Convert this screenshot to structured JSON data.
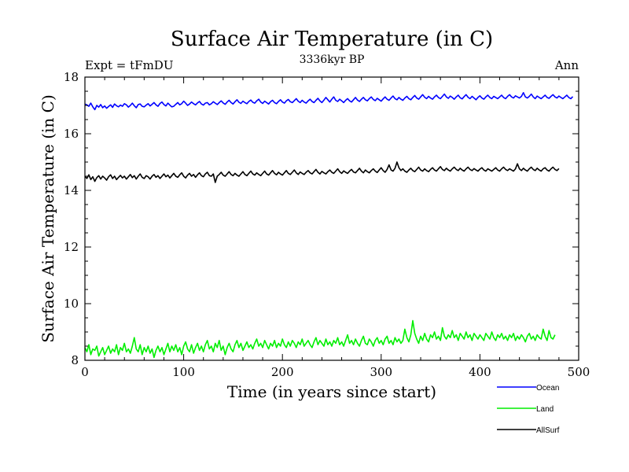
{
  "chart_data": {
    "type": "line",
    "title": "Surface Air Temperature (in C)",
    "subtitle": "3336kyr BP",
    "annotation_left": "Expt = tFmDU",
    "annotation_right": "Ann",
    "xlabel": "Time (in years since start)",
    "ylabel": "Surface Air Temperature (in C)",
    "xlim": [
      0,
      500
    ],
    "ylim": [
      8,
      18
    ],
    "xticks": [
      0,
      100,
      200,
      300,
      400,
      500
    ],
    "xtick_labels": [
      "0",
      "100",
      "200",
      "300",
      "400",
      "500"
    ],
    "yticks": [
      8,
      10,
      12,
      14,
      16,
      18
    ],
    "ytick_labels": [
      "8",
      "10",
      "12",
      "14",
      "16",
      "18"
    ],
    "grid": false,
    "legend_position": "bottom-right outside",
    "x_step": 2,
    "series": [
      {
        "name": "Ocean",
        "color": "#0000ff",
        "values": [
          17.05,
          17.02,
          16.97,
          17.08,
          16.95,
          16.85,
          17.0,
          16.94,
          17.03,
          16.92,
          16.98,
          16.9,
          16.96,
          17.02,
          16.93,
          17.05,
          16.99,
          16.95,
          17.01,
          16.97,
          17.06,
          17.02,
          16.94,
          17.0,
          17.08,
          16.99,
          16.92,
          17.03,
          17.05,
          16.97,
          16.95,
          17.01,
          17.06,
          16.98,
          17.04,
          17.1,
          17.02,
          16.97,
          17.07,
          17.12,
          17.03,
          16.98,
          17.08,
          17.01,
          16.95,
          16.97,
          17.04,
          17.1,
          17.02,
          17.06,
          17.15,
          17.08,
          17.0,
          17.05,
          17.12,
          17.06,
          17.02,
          17.09,
          17.14,
          17.05,
          17.01,
          17.08,
          17.1,
          17.02,
          17.06,
          17.13,
          17.08,
          17.03,
          17.1,
          17.16,
          17.09,
          17.04,
          17.12,
          17.18,
          17.1,
          17.05,
          17.13,
          17.2,
          17.11,
          17.07,
          17.15,
          17.1,
          17.06,
          17.14,
          17.19,
          17.11,
          17.08,
          17.16,
          17.22,
          17.12,
          17.07,
          17.15,
          17.1,
          17.05,
          17.13,
          17.18,
          17.1,
          17.06,
          17.14,
          17.2,
          17.12,
          17.08,
          17.16,
          17.21,
          17.13,
          17.1,
          17.17,
          17.24,
          17.15,
          17.1,
          17.18,
          17.12,
          17.08,
          17.16,
          17.22,
          17.14,
          17.1,
          17.18,
          17.25,
          17.16,
          17.1,
          17.19,
          17.28,
          17.2,
          17.12,
          17.22,
          17.3,
          17.18,
          17.14,
          17.22,
          17.16,
          17.1,
          17.18,
          17.24,
          17.16,
          17.12,
          17.2,
          17.28,
          17.19,
          17.14,
          17.22,
          17.28,
          17.2,
          17.16,
          17.24,
          17.3,
          17.21,
          17.17,
          17.25,
          17.2,
          17.15,
          17.23,
          17.3,
          17.22,
          17.18,
          17.26,
          17.33,
          17.24,
          17.2,
          17.28,
          17.22,
          17.18,
          17.26,
          17.32,
          17.24,
          17.2,
          17.28,
          17.35,
          17.26,
          17.22,
          17.3,
          17.38,
          17.29,
          17.24,
          17.32,
          17.26,
          17.22,
          17.3,
          17.36,
          17.28,
          17.24,
          17.32,
          17.4,
          17.3,
          17.25,
          17.33,
          17.28,
          17.22,
          17.3,
          17.36,
          17.27,
          17.23,
          17.31,
          17.38,
          17.29,
          17.24,
          17.32,
          17.26,
          17.2,
          17.28,
          17.34,
          17.26,
          17.22,
          17.3,
          17.36,
          17.28,
          17.24,
          17.32,
          17.28,
          17.24,
          17.3,
          17.36,
          17.28,
          17.24,
          17.32,
          17.38,
          17.3,
          17.26,
          17.34,
          17.3,
          17.26,
          17.32,
          17.45,
          17.3,
          17.26,
          17.32,
          17.4,
          17.3,
          17.24,
          17.33,
          17.28,
          17.24,
          17.3,
          17.36,
          17.28,
          17.25,
          17.32,
          17.38,
          17.3,
          17.26,
          17.33,
          17.28,
          17.24,
          17.3,
          17.36,
          17.28,
          17.24,
          17.31
        ]
      },
      {
        "name": "Land",
        "color": "#00ee00",
        "values": [
          8.45,
          8.3,
          8.55,
          8.2,
          8.4,
          8.35,
          8.5,
          8.15,
          8.3,
          8.45,
          8.2,
          8.35,
          8.5,
          8.25,
          8.4,
          8.3,
          8.55,
          8.2,
          8.45,
          8.35,
          8.6,
          8.3,
          8.4,
          8.25,
          8.5,
          8.8,
          8.4,
          8.3,
          8.55,
          8.2,
          8.45,
          8.3,
          8.5,
          8.25,
          8.4,
          8.1,
          8.35,
          8.5,
          8.3,
          8.45,
          8.2,
          8.4,
          8.6,
          8.3,
          8.5,
          8.35,
          8.55,
          8.3,
          8.45,
          8.2,
          8.5,
          8.65,
          8.4,
          8.3,
          8.55,
          8.25,
          8.45,
          8.6,
          8.35,
          8.5,
          8.3,
          8.55,
          8.7,
          8.4,
          8.5,
          8.3,
          8.6,
          8.45,
          8.7,
          8.35,
          8.5,
          8.2,
          8.45,
          8.6,
          8.4,
          8.3,
          8.55,
          8.7,
          8.45,
          8.6,
          8.35,
          8.5,
          8.65,
          8.45,
          8.55,
          8.4,
          8.6,
          8.75,
          8.5,
          8.6,
          8.45,
          8.7,
          8.55,
          8.4,
          8.6,
          8.5,
          8.7,
          8.45,
          8.6,
          8.5,
          8.75,
          8.55,
          8.45,
          8.65,
          8.5,
          8.7,
          8.6,
          8.45,
          8.65,
          8.55,
          8.75,
          8.5,
          8.6,
          8.7,
          8.55,
          8.45,
          8.65,
          8.8,
          8.55,
          8.7,
          8.6,
          8.5,
          8.75,
          8.55,
          8.65,
          8.5,
          8.7,
          8.6,
          8.8,
          8.55,
          8.65,
          8.5,
          8.7,
          8.9,
          8.6,
          8.7,
          8.55,
          8.75,
          8.6,
          8.5,
          8.7,
          8.85,
          8.6,
          8.55,
          8.75,
          8.65,
          8.5,
          8.7,
          8.8,
          8.6,
          8.7,
          8.55,
          8.75,
          8.85,
          8.6,
          8.7,
          8.55,
          8.8,
          8.65,
          8.75,
          8.6,
          8.7,
          9.1,
          8.8,
          8.65,
          8.9,
          9.4,
          8.95,
          8.75,
          8.6,
          8.85,
          8.7,
          8.95,
          8.75,
          8.65,
          8.9,
          8.8,
          9.0,
          8.75,
          8.85,
          8.7,
          9.15,
          8.85,
          8.75,
          8.9,
          8.8,
          9.05,
          8.8,
          8.9,
          8.7,
          8.95,
          8.85,
          8.75,
          9.0,
          8.8,
          8.9,
          8.7,
          8.95,
          8.85,
          8.75,
          8.9,
          8.8,
          8.7,
          8.95,
          8.85,
          8.75,
          9.0,
          8.8,
          8.7,
          8.9,
          8.8,
          8.95,
          8.75,
          8.85,
          8.7,
          8.9,
          8.8,
          8.95,
          8.7,
          8.85,
          8.75,
          8.9,
          8.8,
          8.65,
          8.85,
          8.95,
          8.75,
          8.85,
          8.7,
          8.9,
          8.8,
          8.75,
          9.1,
          8.85,
          8.7,
          9.05,
          8.8,
          8.75,
          8.9
        ]
      },
      {
        "name": "AllSurf",
        "color": "#000000",
        "values": [
          14.5,
          14.42,
          14.55,
          14.38,
          14.48,
          14.32,
          14.45,
          14.52,
          14.4,
          14.5,
          14.44,
          14.36,
          14.48,
          14.55,
          14.42,
          14.5,
          14.38,
          14.46,
          14.53,
          14.44,
          14.5,
          14.4,
          14.48,
          14.56,
          14.45,
          14.52,
          14.4,
          14.5,
          14.58,
          14.46,
          14.42,
          14.52,
          14.48,
          14.4,
          14.5,
          14.56,
          14.46,
          14.52,
          14.42,
          14.5,
          14.58,
          14.48,
          14.54,
          14.44,
          14.52,
          14.6,
          14.5,
          14.46,
          14.55,
          14.62,
          14.5,
          14.44,
          14.54,
          14.6,
          14.5,
          14.56,
          14.46,
          14.55,
          14.62,
          14.52,
          14.48,
          14.58,
          14.64,
          14.52,
          14.5,
          14.58,
          14.28,
          14.5,
          14.56,
          14.64,
          14.54,
          14.5,
          14.58,
          14.66,
          14.56,
          14.52,
          14.6,
          14.54,
          14.5,
          14.58,
          14.66,
          14.56,
          14.52,
          14.6,
          14.68,
          14.58,
          14.54,
          14.62,
          14.56,
          14.52,
          14.6,
          14.68,
          14.58,
          14.54,
          14.62,
          14.7,
          14.6,
          14.55,
          14.64,
          14.58,
          14.54,
          14.62,
          14.7,
          14.6,
          14.56,
          14.64,
          14.72,
          14.62,
          14.56,
          14.65,
          14.6,
          14.56,
          14.64,
          14.7,
          14.62,
          14.58,
          14.66,
          14.74,
          14.64,
          14.58,
          14.67,
          14.62,
          14.58,
          14.66,
          14.72,
          14.64,
          14.6,
          14.68,
          14.76,
          14.66,
          14.6,
          14.69,
          14.64,
          14.6,
          14.68,
          14.74,
          14.65,
          14.62,
          14.7,
          14.78,
          14.68,
          14.62,
          14.72,
          14.66,
          14.62,
          14.7,
          14.76,
          14.68,
          14.63,
          14.72,
          14.8,
          14.7,
          14.64,
          14.74,
          14.9,
          14.72,
          14.68,
          14.78,
          15.0,
          14.8,
          14.7,
          14.76,
          14.68,
          14.64,
          14.72,
          14.78,
          14.7,
          14.66,
          14.74,
          14.82,
          14.72,
          14.68,
          14.76,
          14.7,
          14.66,
          14.74,
          14.8,
          14.72,
          14.68,
          14.76,
          14.84,
          14.74,
          14.7,
          14.78,
          14.72,
          14.68,
          14.76,
          14.82,
          14.74,
          14.7,
          14.78,
          14.72,
          14.68,
          14.76,
          14.82,
          14.74,
          14.7,
          14.77,
          14.72,
          14.68,
          14.75,
          14.8,
          14.72,
          14.68,
          14.76,
          14.72,
          14.68,
          14.74,
          14.8,
          14.72,
          14.68,
          14.76,
          14.82,
          14.74,
          14.7,
          14.76,
          14.72,
          14.68,
          14.76,
          14.94,
          14.76,
          14.7,
          14.78,
          14.72,
          14.68,
          14.76,
          14.82,
          14.74,
          14.7,
          14.78,
          14.72,
          14.68,
          14.76,
          14.8,
          14.72,
          14.68,
          14.76,
          14.82,
          14.74,
          14.7,
          14.77
        ]
      }
    ]
  }
}
